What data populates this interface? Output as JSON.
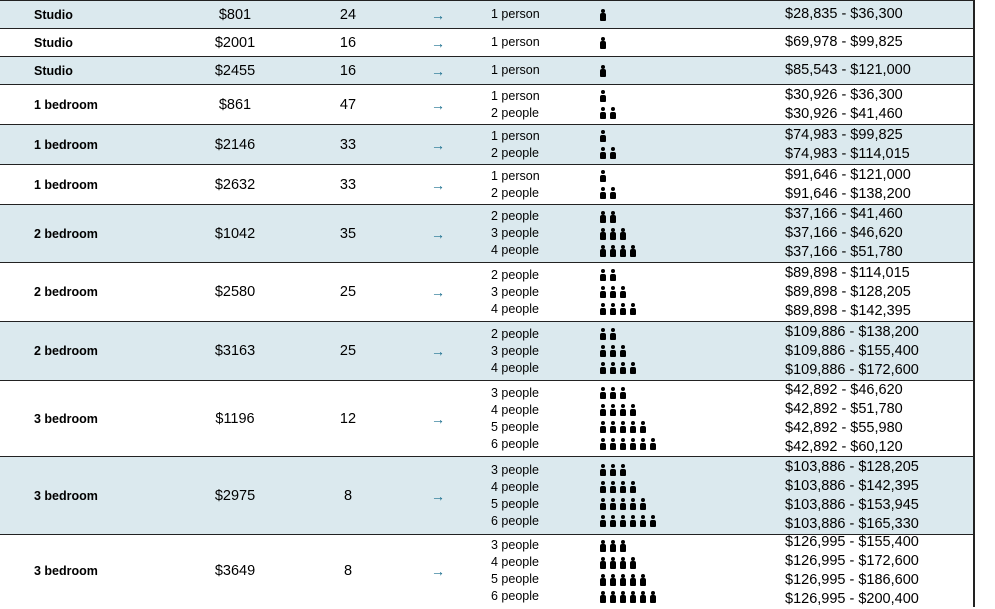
{
  "rows": [
    {
      "type": "Studio",
      "rent": "$801",
      "units": "24",
      "shaded": true,
      "arrow": "arrow-right-icon",
      "households": [
        {
          "label": "1 person",
          "count": 1,
          "income": "$28,835 - $36,300"
        }
      ]
    },
    {
      "type": "Studio",
      "rent": "$2001",
      "units": "16",
      "shaded": false,
      "households": [
        {
          "label": "1 person",
          "count": 1,
          "income": "$69,978 - $99,825"
        }
      ]
    },
    {
      "type": "Studio",
      "rent": "$2455",
      "units": "16",
      "shaded": true,
      "households": [
        {
          "label": "1 person",
          "count": 1,
          "income": "$85,543 - $121,000"
        }
      ]
    },
    {
      "type": "1 bedroom",
      "rent": "$861",
      "units": "47",
      "shaded": false,
      "households": [
        {
          "label": "1 person",
          "count": 1,
          "income": "$30,926 - $36,300"
        },
        {
          "label": "2 people",
          "count": 2,
          "income": "$30,926 - $41,460"
        }
      ]
    },
    {
      "type": "1 bedroom",
      "rent": "$2146",
      "units": "33",
      "shaded": true,
      "households": [
        {
          "label": "1 person",
          "count": 1,
          "income": "$74,983 - $99,825"
        },
        {
          "label": "2 people",
          "count": 2,
          "income": "$74,983 - $114,015"
        }
      ]
    },
    {
      "type": "1 bedroom",
      "rent": "$2632",
      "units": "33",
      "shaded": false,
      "households": [
        {
          "label": "1 person",
          "count": 1,
          "income": "$91,646 - $121,000"
        },
        {
          "label": "2 people",
          "count": 2,
          "income": "$91,646 - $138,200"
        }
      ]
    },
    {
      "type": "2 bedroom",
      "rent": "$1042",
      "units": "35",
      "shaded": true,
      "households": [
        {
          "label": "2 people",
          "count": 2,
          "income": "$37,166 - $41,460"
        },
        {
          "label": "3 people",
          "count": 3,
          "income": "$37,166 - $46,620"
        },
        {
          "label": "4 people",
          "count": 4,
          "income": "$37,166 - $51,780"
        }
      ]
    },
    {
      "type": "2 bedroom",
      "rent": "$2580",
      "units": "25",
      "shaded": false,
      "households": [
        {
          "label": "2 people",
          "count": 2,
          "income": "$89,898 - $114,015"
        },
        {
          "label": "3 people",
          "count": 3,
          "income": "$89,898 - $128,205"
        },
        {
          "label": "4 people",
          "count": 4,
          "income": "$89,898 - $142,395"
        }
      ]
    },
    {
      "type": "2 bedroom",
      "rent": "$3163",
      "units": "25",
      "shaded": true,
      "households": [
        {
          "label": "2 people",
          "count": 2,
          "income": "$109,886 - $138,200"
        },
        {
          "label": "3 people",
          "count": 3,
          "income": "$109,886 - $155,400"
        },
        {
          "label": "4 people",
          "count": 4,
          "income": "$109,886 - $172,600"
        }
      ]
    },
    {
      "type": "3 bedroom",
      "rent": "$1196",
      "units": "12",
      "shaded": false,
      "households": [
        {
          "label": "3 people",
          "count": 3,
          "income": "$42,892 - $46,620"
        },
        {
          "label": "4 people",
          "count": 4,
          "income": "$42,892 - $51,780"
        },
        {
          "label": "5 people",
          "count": 5,
          "income": "$42,892 - $55,980"
        },
        {
          "label": "6 people",
          "count": 6,
          "income": "$42,892 - $60,120"
        }
      ]
    },
    {
      "type": "3 bedroom",
      "rent": "$2975",
      "units": "8",
      "shaded": true,
      "households": [
        {
          "label": "3 people",
          "count": 3,
          "income": "$103,886 - $128,205"
        },
        {
          "label": "4 people",
          "count": 4,
          "income": "$103,886 - $142,395"
        },
        {
          "label": "5 people",
          "count": 5,
          "income": "$103,886 - $153,945"
        },
        {
          "label": "6 people",
          "count": 6,
          "income": "$103,886 - $165,330"
        }
      ]
    },
    {
      "type": "3 bedroom",
      "rent": "$3649",
      "units": "8",
      "shaded": false,
      "households": [
        {
          "label": "3 people",
          "count": 3,
          "income": "$126,995 - $155,400"
        },
        {
          "label": "4 people",
          "count": 4,
          "income": "$126,995 - $172,600"
        },
        {
          "label": "5 people",
          "count": 5,
          "income": "$126,995 - $186,600"
        },
        {
          "label": "6 people",
          "count": 6,
          "income": "$126,995 - $200,400"
        }
      ]
    }
  ],
  "arrow_glyph": "→",
  "colors": {
    "shaded_row": "#dbe9ee",
    "arrow": "#1a6e8e",
    "border": "#222222"
  }
}
